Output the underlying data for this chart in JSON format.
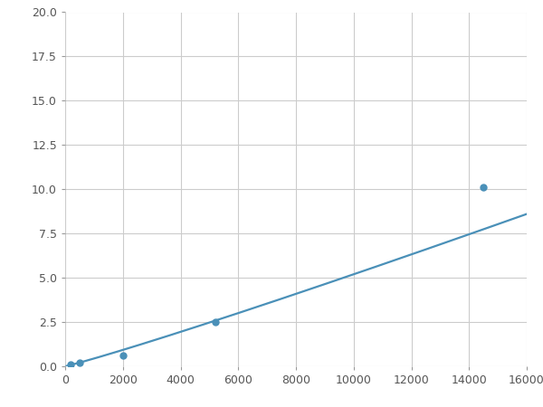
{
  "x_points": [
    200,
    500,
    2000,
    5200,
    14500
  ],
  "y_points": [
    0.1,
    0.2,
    0.6,
    2.5,
    10.1
  ],
  "line_color": "#4a90b8",
  "marker_color": "#4a90b8",
  "xlim": [
    0,
    16000
  ],
  "ylim": [
    0,
    20.0
  ],
  "xticks": [
    0,
    2000,
    4000,
    6000,
    8000,
    10000,
    12000,
    14000,
    16000
  ],
  "yticks": [
    0.0,
    2.5,
    5.0,
    7.5,
    10.0,
    12.5,
    15.0,
    17.5,
    20.0
  ],
  "grid_color": "#cccccc",
  "background_color": "#ffffff",
  "marker_size": 5,
  "line_width": 1.6
}
